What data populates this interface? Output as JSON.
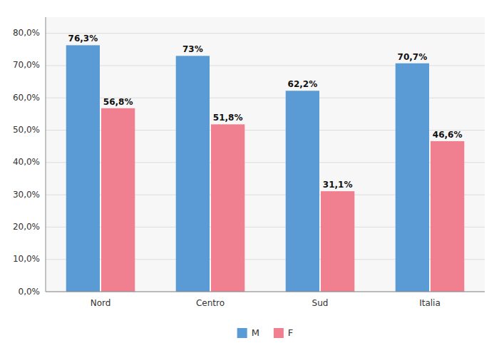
{
  "chart_data": {
    "type": "bar",
    "categories": [
      "Nord",
      "Centro",
      "Sud",
      "Italia"
    ],
    "series": [
      {
        "name": "M",
        "color": "#5B9BD5",
        "values": [
          76.3,
          73.0,
          62.2,
          70.7
        ],
        "value_labels": [
          "76,3%",
          "73%",
          "62,2%",
          "70,7%"
        ]
      },
      {
        "name": "F",
        "color": "#F08090",
        "values": [
          56.8,
          51.8,
          31.1,
          46.6
        ],
        "value_labels": [
          "56,8%",
          "51,8%",
          "31,1%",
          "46,6%"
        ]
      }
    ],
    "ylim": [
      0,
      85
    ],
    "yticks": [
      {
        "value": 0,
        "label": "0,0%"
      },
      {
        "value": 10,
        "label": "10,0%"
      },
      {
        "value": 20,
        "label": "20,0%"
      },
      {
        "value": 30,
        "label": "30,0%"
      },
      {
        "value": 40,
        "label": "40,0%"
      },
      {
        "value": 50,
        "label": "50,0%"
      },
      {
        "value": 60,
        "label": "60,0%"
      },
      {
        "value": 70,
        "label": "70,0%"
      },
      {
        "value": 80,
        "label": "80,0%"
      }
    ],
    "grid": true,
    "data_labels": true,
    "legend": "bottom"
  }
}
